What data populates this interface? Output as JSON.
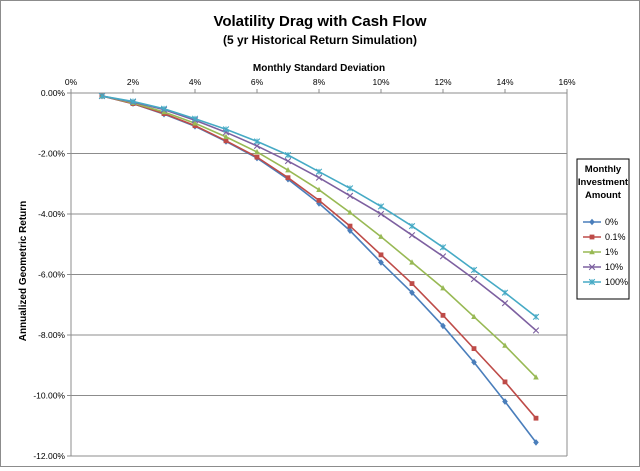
{
  "chart_data": {
    "type": "line",
    "title": "Volatility Drag with Cash Flow",
    "subtitle": "(5 yr Historical Return Simulation)",
    "xlabel": "Monthly Standard Deviation",
    "ylabel": "Annualized Geometric Return",
    "x_axis_position": "top",
    "xlim": [
      0,
      16
    ],
    "ylim": [
      -12,
      0
    ],
    "x_ticks": [
      "0%",
      "2%",
      "4%",
      "6%",
      "8%",
      "10%",
      "12%",
      "14%",
      "16%"
    ],
    "y_ticks": [
      "0.00%",
      "-2.00%",
      "-4.00%",
      "-6.00%",
      "-8.00%",
      "-10.00%",
      "-12.00%"
    ],
    "grid": "horizontal",
    "x": [
      1,
      2,
      3,
      4,
      5,
      6,
      7,
      8,
      9,
      10,
      11,
      12,
      13,
      14,
      15
    ],
    "legend": {
      "title_lines": [
        "Monthly",
        "Investment",
        "Amount"
      ],
      "placement": "right"
    },
    "series": [
      {
        "name": "0%",
        "color": "#4a7ebb",
        "marker": "diamond",
        "values": [
          -0.1,
          -0.35,
          -0.7,
          -1.1,
          -1.6,
          -2.15,
          -2.85,
          -3.65,
          -4.55,
          -5.6,
          -6.6,
          -7.7,
          -8.9,
          -10.2,
          -11.55
        ]
      },
      {
        "name": "0.1%",
        "color": "#be4b48",
        "marker": "square",
        "values": [
          -0.1,
          -0.35,
          -0.68,
          -1.08,
          -1.58,
          -2.12,
          -2.8,
          -3.55,
          -4.4,
          -5.35,
          -6.3,
          -7.35,
          -8.45,
          -9.55,
          -10.75
        ]
      },
      {
        "name": "1%",
        "color": "#98b954",
        "marker": "triangle",
        "values": [
          -0.1,
          -0.33,
          -0.63,
          -1.0,
          -1.45,
          -1.95,
          -2.55,
          -3.2,
          -3.95,
          -4.75,
          -5.6,
          -6.45,
          -7.4,
          -8.35,
          -9.4
        ]
      },
      {
        "name": "10%",
        "color": "#7d60a0",
        "marker": "x",
        "values": [
          -0.1,
          -0.3,
          -0.55,
          -0.9,
          -1.3,
          -1.75,
          -2.25,
          -2.8,
          -3.4,
          -4.0,
          -4.7,
          -5.4,
          -6.15,
          -6.95,
          -7.85
        ]
      },
      {
        "name": "100%",
        "color": "#46aac5",
        "marker": "star",
        "values": [
          -0.1,
          -0.28,
          -0.52,
          -0.85,
          -1.2,
          -1.6,
          -2.05,
          -2.6,
          -3.15,
          -3.75,
          -4.4,
          -5.1,
          -5.85,
          -6.6,
          -7.4
        ]
      }
    ]
  }
}
